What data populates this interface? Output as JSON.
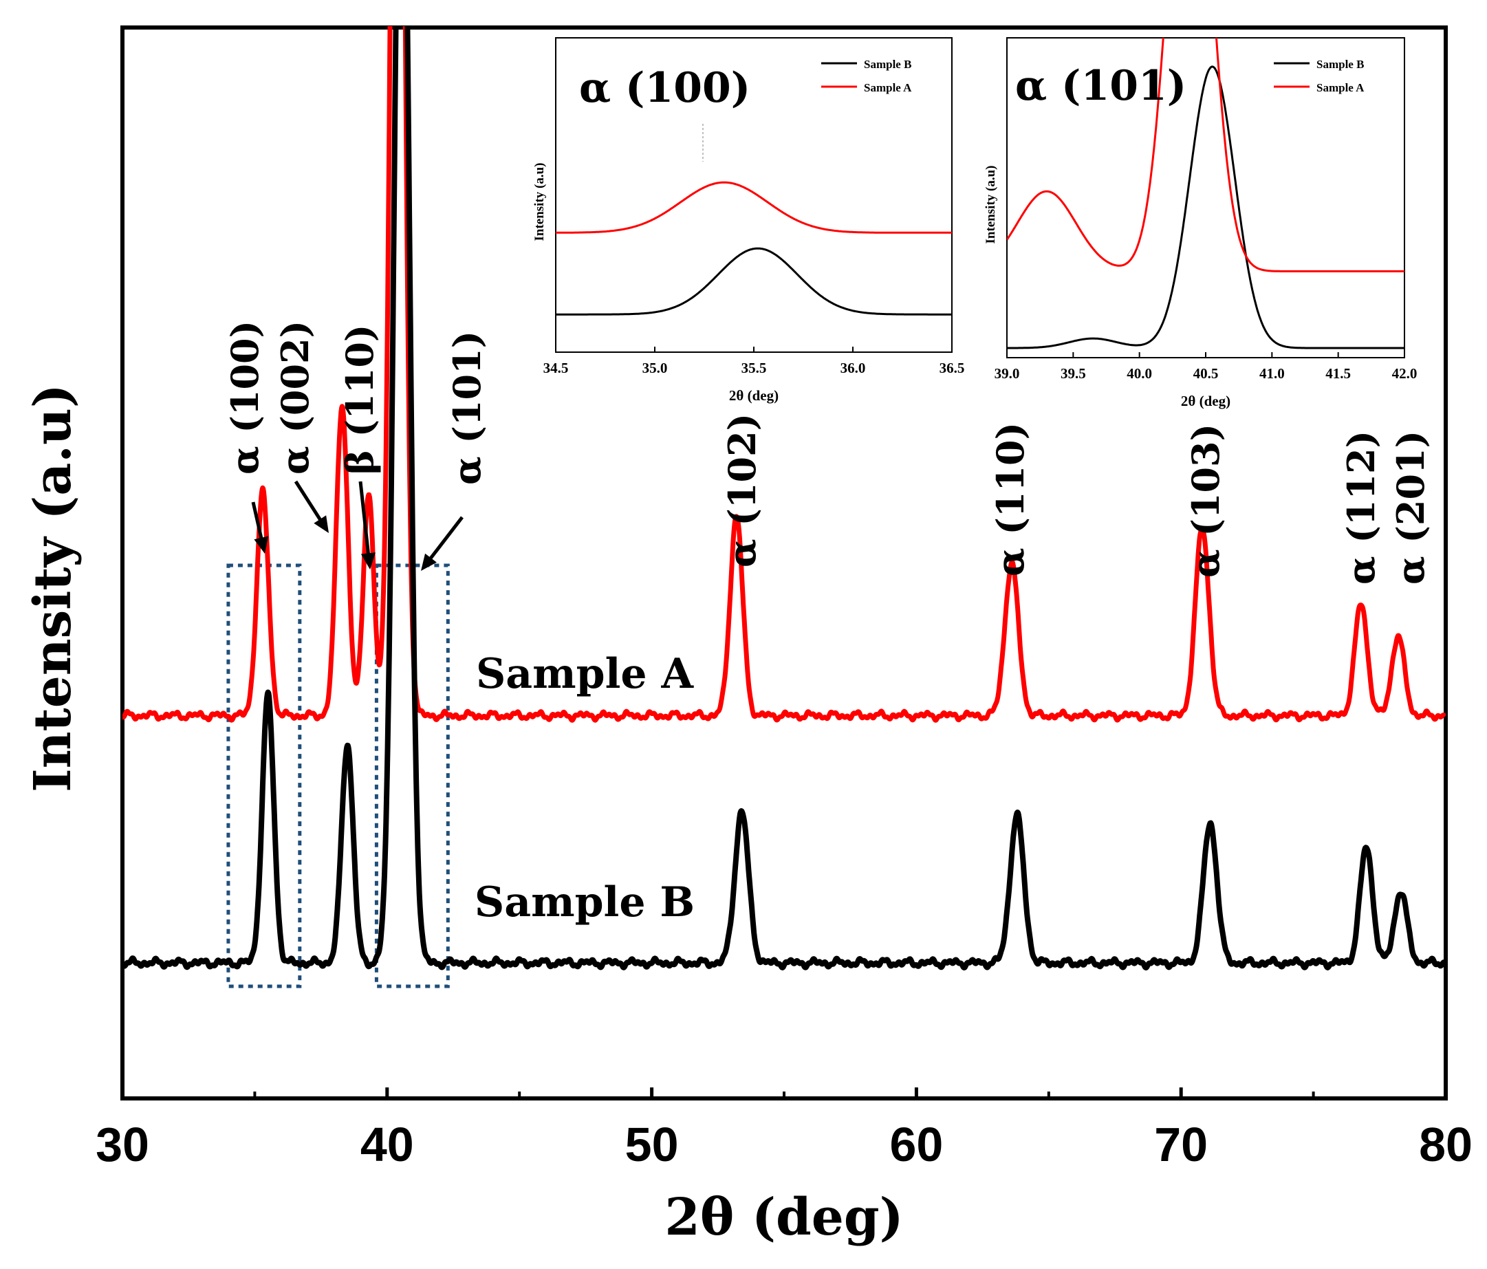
{
  "chart_data": [
    {
      "type": "line",
      "name": "main",
      "xlabel": "2θ (deg)",
      "ylabel": "Intensity (a.u)",
      "xlim": [
        30,
        80
      ],
      "x_ticks": [
        30,
        40,
        50,
        60,
        70,
        80
      ],
      "y_ticks_shown": false,
      "series": [
        {
          "name": "Sample A",
          "label": "Sample A",
          "color": "#ff0000",
          "baseline": 0.62,
          "peaks": [
            {
              "x": 35.3,
              "h": 0.56,
              "w": 0.22
            },
            {
              "x": 38.3,
              "h": 0.78,
              "w": 0.22
            },
            {
              "x": 39.3,
              "h": 0.56,
              "w": 0.2
            },
            {
              "x": 40.4,
              "h": 3.6,
              "w": 0.24
            },
            {
              "x": 53.2,
              "h": 0.5,
              "w": 0.24
            },
            {
              "x": 63.6,
              "h": 0.38,
              "w": 0.26
            },
            {
              "x": 70.8,
              "h": 0.47,
              "w": 0.26
            },
            {
              "x": 76.8,
              "h": 0.28,
              "w": 0.24
            },
            {
              "x": 78.2,
              "h": 0.2,
              "w": 0.24
            }
          ]
        },
        {
          "name": "Sample B",
          "label": "Sample B",
          "color": "#000000",
          "baseline": 0.0,
          "peaks": [
            {
              "x": 35.5,
              "h": 0.67,
              "w": 0.22
            },
            {
              "x": 38.5,
              "h": 0.55,
              "w": 0.22
            },
            {
              "x": 40.55,
              "h": 3.2,
              "w": 0.28
            },
            {
              "x": 53.4,
              "h": 0.38,
              "w": 0.26
            },
            {
              "x": 63.8,
              "h": 0.37,
              "w": 0.26
            },
            {
              "x": 71.1,
              "h": 0.35,
              "w": 0.26
            },
            {
              "x": 77.0,
              "h": 0.29,
              "w": 0.24
            },
            {
              "x": 78.3,
              "h": 0.18,
              "w": 0.24
            }
          ]
        }
      ],
      "annotations": [
        {
          "text": "α (100)",
          "peak_x": 35.4
        },
        {
          "text": "α (002)",
          "peak_x": 38.4
        },
        {
          "text": "β (110)",
          "peak_x": 39.4
        },
        {
          "text": "α (101)",
          "peak_x": 40.8
        },
        {
          "text": "α (102)",
          "peak_x": 53.2
        },
        {
          "text": "α (110)",
          "peak_x": 63.6
        },
        {
          "text": "α (103)",
          "peak_x": 70.8
        },
        {
          "text": "α (112)",
          "peak_x": 76.9
        },
        {
          "text": "α (201)",
          "peak_x": 78.3
        }
      ],
      "highlight_boxes": [
        {
          "x_range": [
            34.0,
            36.7
          ]
        },
        {
          "x_range": [
            39.6,
            42.3
          ]
        }
      ]
    },
    {
      "type": "line",
      "name": "inset-100",
      "title": "α (100)",
      "xlabel": "2θ (deg)",
      "ylabel": "Intensity (a.u)",
      "xlim": [
        34.5,
        36.5
      ],
      "x_ticks": [
        "34.5",
        "35.0",
        "35.5",
        "36.0",
        "36.5"
      ],
      "legend": "top-right",
      "legend_entries": [
        "Sample B",
        "Sample A"
      ],
      "series": [
        {
          "name": "Sample B",
          "color": "#000000",
          "baseline": 0.12,
          "peak_x": 35.52,
          "peak_h": 0.21,
          "peak_w": 0.2
        },
        {
          "name": "Sample A",
          "color": "#ff0000",
          "baseline": 0.38,
          "peak_x": 35.35,
          "peak_h": 0.16,
          "peak_w": 0.22
        }
      ]
    },
    {
      "type": "line",
      "name": "inset-101",
      "title": "α (101)",
      "xlabel": "2θ (deg)",
      "ylabel": "Intensity (a.u)",
      "xlim": [
        39.0,
        42.0
      ],
      "x_ticks": [
        "39.0",
        "39.5",
        "40.0",
        "40.5",
        "41.0",
        "41.5",
        "42.0"
      ],
      "legend": "top-right",
      "legend_entries": [
        "Sample B",
        "Sample A"
      ],
      "series": [
        {
          "name": "Sample B",
          "color": "#000000",
          "baseline": 0.03,
          "peaks": [
            {
              "x": 39.65,
              "h": 0.03,
              "w": 0.18
            },
            {
              "x": 40.55,
              "h": 0.88,
              "w": 0.17
            }
          ]
        },
        {
          "name": "Sample A",
          "color": "#ff0000",
          "baseline": 0.27,
          "peaks": [
            {
              "x": 39.3,
              "h": 0.25,
              "w": 0.22
            },
            {
              "x": 40.38,
              "h": 1.6,
              "w": 0.16
            }
          ]
        }
      ]
    }
  ]
}
